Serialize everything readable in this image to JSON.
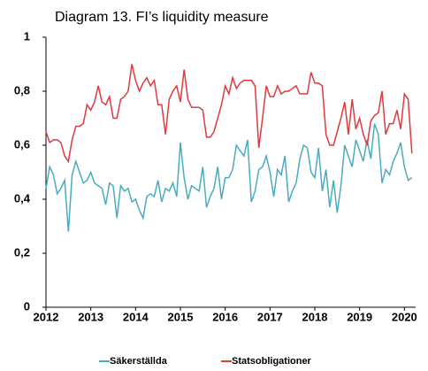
{
  "chart_data": {
    "type": "line",
    "title": "Diagram 13. FI’s liquidity measure",
    "x": [
      2012,
      2012.083,
      2012.167,
      2012.25,
      2012.333,
      2012.417,
      2012.5,
      2012.583,
      2012.667,
      2012.75,
      2012.833,
      2012.917,
      2013,
      2013.083,
      2013.167,
      2013.25,
      2013.333,
      2013.417,
      2013.5,
      2013.583,
      2013.667,
      2013.75,
      2013.833,
      2013.917,
      2014,
      2014.083,
      2014.167,
      2014.25,
      2014.333,
      2014.417,
      2014.5,
      2014.583,
      2014.667,
      2014.75,
      2014.833,
      2014.917,
      2015,
      2015.083,
      2015.167,
      2015.25,
      2015.333,
      2015.417,
      2015.5,
      2015.583,
      2015.667,
      2015.75,
      2015.833,
      2015.917,
      2016,
      2016.083,
      2016.167,
      2016.25,
      2016.333,
      2016.417,
      2016.5,
      2016.583,
      2016.667,
      2016.75,
      2016.833,
      2016.917,
      2017,
      2017.083,
      2017.167,
      2017.25,
      2017.333,
      2017.417,
      2017.5,
      2017.583,
      2017.667,
      2017.75,
      2017.833,
      2017.917,
      2018,
      2018.083,
      2018.167,
      2018.25,
      2018.333,
      2018.417,
      2018.5,
      2018.583,
      2018.667,
      2018.75,
      2018.833,
      2018.917,
      2019,
      2019.083,
      2019.167,
      2019.25,
      2019.333,
      2019.417,
      2019.5,
      2019.583,
      2019.667,
      2019.75,
      2019.833,
      2019.917,
      2020,
      2020.083,
      2020.167
    ],
    "series": [
      {
        "name": "Säkerställda",
        "color": "#4aabc0",
        "values": [
          0.44,
          0.52,
          0.49,
          0.42,
          0.44,
          0.47,
          0.28,
          0.49,
          0.54,
          0.5,
          0.46,
          0.47,
          0.5,
          0.46,
          0.45,
          0.44,
          0.38,
          0.46,
          0.45,
          0.33,
          0.45,
          0.43,
          0.44,
          0.39,
          0.4,
          0.36,
          0.33,
          0.41,
          0.42,
          0.41,
          0.47,
          0.39,
          0.44,
          0.43,
          0.46,
          0.41,
          0.61,
          0.48,
          0.4,
          0.45,
          0.44,
          0.43,
          0.52,
          0.37,
          0.41,
          0.44,
          0.52,
          0.4,
          0.48,
          0.48,
          0.51,
          0.6,
          0.58,
          0.56,
          0.62,
          0.39,
          0.43,
          0.51,
          0.52,
          0.56,
          0.5,
          0.41,
          0.51,
          0.49,
          0.56,
          0.39,
          0.43,
          0.46,
          0.55,
          0.6,
          0.59,
          0.5,
          0.48,
          0.59,
          0.43,
          0.51,
          0.37,
          0.47,
          0.35,
          0.45,
          0.6,
          0.56,
          0.52,
          0.62,
          0.58,
          0.54,
          0.62,
          0.55,
          0.68,
          0.64,
          0.46,
          0.51,
          0.49,
          0.54,
          0.57,
          0.61,
          0.52,
          0.47,
          0.48
        ]
      },
      {
        "name": "Statsobligationer",
        "color": "#e0393e",
        "values": [
          0.65,
          0.61,
          0.62,
          0.62,
          0.61,
          0.56,
          0.54,
          0.62,
          0.67,
          0.67,
          0.68,
          0.75,
          0.73,
          0.76,
          0.82,
          0.76,
          0.75,
          0.78,
          0.7,
          0.7,
          0.77,
          0.78,
          0.8,
          0.9,
          0.84,
          0.8,
          0.83,
          0.85,
          0.82,
          0.84,
          0.75,
          0.75,
          0.64,
          0.77,
          0.8,
          0.82,
          0.76,
          0.88,
          0.77,
          0.74,
          0.74,
          0.74,
          0.73,
          0.63,
          0.63,
          0.65,
          0.7,
          0.75,
          0.82,
          0.79,
          0.85,
          0.81,
          0.83,
          0.84,
          0.84,
          0.84,
          0.82,
          0.59,
          0.7,
          0.82,
          0.78,
          0.78,
          0.82,
          0.79,
          0.8,
          0.8,
          0.81,
          0.82,
          0.79,
          0.79,
          0.79,
          0.87,
          0.83,
          0.83,
          0.82,
          0.64,
          0.6,
          0.6,
          0.65,
          0.7,
          0.76,
          0.64,
          0.77,
          0.66,
          0.7,
          0.64,
          0.6,
          0.69,
          0.71,
          0.72,
          0.8,
          0.64,
          0.68,
          0.68,
          0.73,
          0.66,
          0.79,
          0.77,
          0.57
        ]
      }
    ],
    "xlim": [
      2012,
      2020.25
    ],
    "xticks": [
      2012,
      2013,
      2014,
      2015,
      2016,
      2017,
      2018,
      2019,
      2020
    ],
    "ylim": [
      0,
      1
    ],
    "yticks": [
      0,
      {
        "value": 0.2,
        "label": "0,2"
      },
      {
        "value": 0.4,
        "label": "0,4"
      },
      {
        "value": 0.6,
        "label": "0,6"
      },
      {
        "value": 0.8,
        "label": "0,8"
      },
      1
    ],
    "legend": "bottom"
  }
}
